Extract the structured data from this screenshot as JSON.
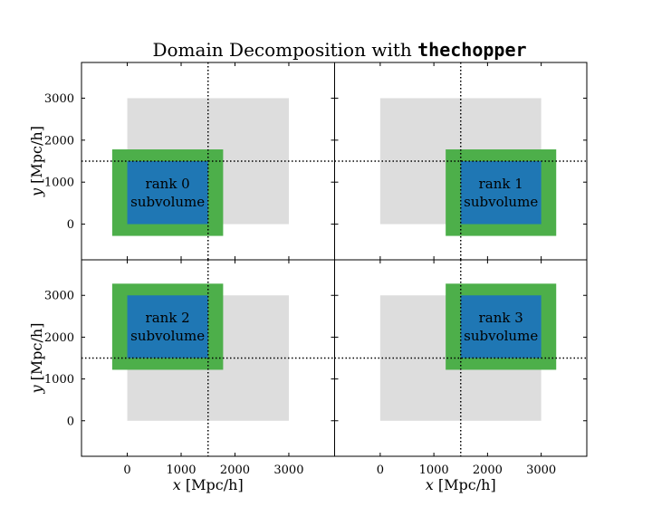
{
  "figure": {
    "title_prefix": "Domain Decomposition with ",
    "title_code": "thechopper"
  },
  "chart_data": {
    "type": "rectangles",
    "xlim": [
      -850,
      3850
    ],
    "ylim": [
      -850,
      3850
    ],
    "xticks": [
      0,
      1000,
      2000,
      3000
    ],
    "yticks": [
      0,
      1000,
      2000,
      3000
    ],
    "xlabel_var": "x",
    "xlabel_unit": " [Mpc/h]",
    "ylabel_var": "y",
    "ylabel_unit": " [Mpc/h]",
    "split_x": 1500,
    "split_y": 1500,
    "full_box": [
      0,
      0,
      3000,
      3000
    ],
    "colors": {
      "full_box": "#dddddd",
      "buffer": "#4daf4a",
      "subvolume": "#1f77b4",
      "split_line": "#000000"
    },
    "panels": [
      {
        "rank_label": "rank 0",
        "sub_label": "subvolume",
        "subvolume": [
          0,
          0,
          1500,
          1500
        ],
        "buffer": [
          -280,
          -280,
          1780,
          1780
        ]
      },
      {
        "rank_label": "rank 1",
        "sub_label": "subvolume",
        "subvolume": [
          1500,
          0,
          3000,
          1500
        ],
        "buffer": [
          1220,
          -280,
          3280,
          1780
        ]
      },
      {
        "rank_label": "rank 2",
        "sub_label": "subvolume",
        "subvolume": [
          0,
          1500,
          1500,
          3000
        ],
        "buffer": [
          -280,
          1220,
          1780,
          3280
        ]
      },
      {
        "rank_label": "rank 3",
        "sub_label": "subvolume",
        "subvolume": [
          1500,
          1500,
          3000,
          3000
        ],
        "buffer": [
          1220,
          1220,
          3280,
          3280
        ]
      }
    ]
  }
}
